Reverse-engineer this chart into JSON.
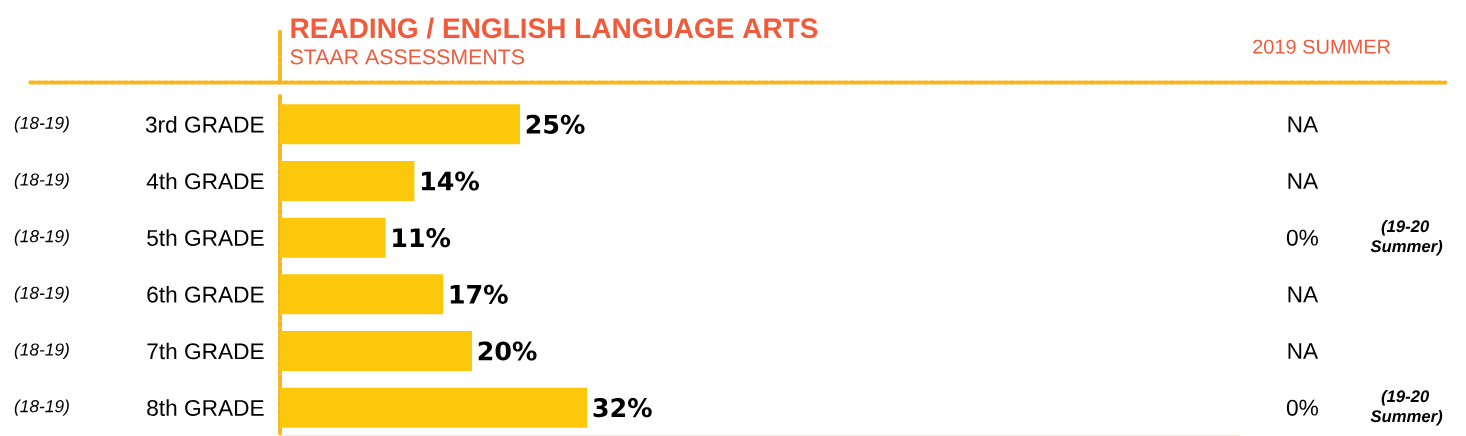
{
  "chart_data": {
    "type": "bar",
    "orientation": "horizontal",
    "title": "READING / ENGLISH LANGUAGE ARTS",
    "subtitle": "STAAR ASSESSMENTS",
    "categories": [
      "3rd GRADE",
      "4th GRADE",
      "5th GRADE",
      "6th GRADE",
      "7th GRADE",
      "8th GRADE"
    ],
    "values": [
      25,
      14,
      11,
      17,
      20,
      32
    ],
    "value_labels": [
      "25%",
      "14%",
      "11%",
      "17%",
      "20%",
      "32%"
    ],
    "color": "#fdc70c",
    "xlim": [
      0,
      100
    ],
    "tick_labels": "y",
    "grid": false,
    "annotations": [
      "2019 SUMMER",
      "(18-19)",
      "(18-19)",
      "(18-19)",
      "(18-19)",
      "(18-19)",
      "(18-19)",
      "NA",
      "NA",
      "0%",
      "NA",
      "NA",
      "0%",
      "(19-20 Summer)",
      "(19-20 Summer)"
    ]
  }
}
